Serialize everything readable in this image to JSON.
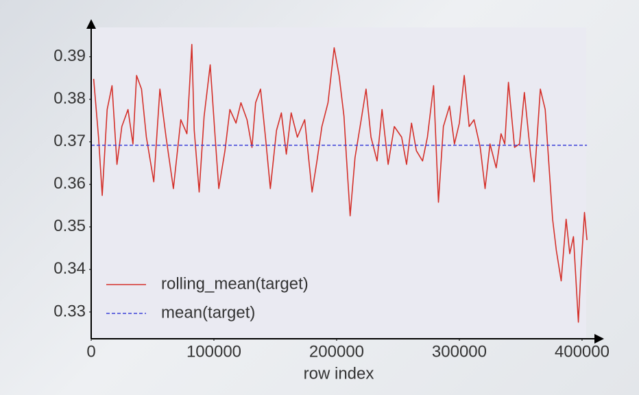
{
  "chart_data": {
    "type": "line",
    "x_label": "row index",
    "xlim": [
      0,
      414000
    ],
    "ylim": [
      0.3237,
      0.3977
    ],
    "xticks": [
      0,
      100000,
      200000,
      300000,
      400000
    ],
    "yticks": [
      0.33,
      0.34,
      0.35,
      0.36,
      0.37,
      0.38,
      0.39
    ],
    "grid": false,
    "legend": "lower left",
    "series": [
      {
        "name": "rolling_mean(target)",
        "color": "#d4302a",
        "style": "solid",
        "x": [
          2000,
          6000,
          9000,
          13000,
          17000,
          21000,
          25000,
          30000,
          34000,
          37000,
          41000,
          45000,
          51000,
          56000,
          61000,
          67000,
          73000,
          78000,
          82000,
          84000,
          88000,
          92000,
          97000,
          101000,
          104000,
          109000,
          113000,
          118000,
          122000,
          127000,
          131000,
          134000,
          138000,
          142000,
          146000,
          151000,
          155000,
          159000,
          163000,
          168000,
          174000,
          180000,
          184000,
          188000,
          193000,
          198000,
          202000,
          206000,
          208000,
          211000,
          215000,
          220000,
          224000,
          228000,
          233000,
          237000,
          242000,
          247000,
          253000,
          257000,
          261000,
          265000,
          270000,
          274000,
          279000,
          283000,
          287000,
          292000,
          296000,
          300000,
          304000,
          308000,
          312000,
          317000,
          321000,
          325000,
          330000,
          334000,
          337000,
          340000,
          345000,
          349000,
          353000,
          358000,
          361000,
          366000,
          370000,
          373000,
          376000,
          379000,
          383000,
          387000,
          390000,
          393000,
          397000,
          399000,
          402000,
          404000
        ],
        "values": [
          0.3848,
          0.3711,
          0.3574,
          0.3776,
          0.3832,
          0.3647,
          0.3736,
          0.3776,
          0.3695,
          0.3856,
          0.3824,
          0.3711,
          0.3606,
          0.3824,
          0.3711,
          0.359,
          0.3752,
          0.3719,
          0.3929,
          0.3727,
          0.3582,
          0.376,
          0.3881,
          0.3711,
          0.359,
          0.3679,
          0.3776,
          0.3744,
          0.3792,
          0.3752,
          0.3687,
          0.3792,
          0.3824,
          0.3711,
          0.359,
          0.3727,
          0.3768,
          0.3671,
          0.3768,
          0.3711,
          0.3752,
          0.3582,
          0.3655,
          0.3736,
          0.3792,
          0.3921,
          0.3856,
          0.376,
          0.3663,
          0.3526,
          0.3663,
          0.3752,
          0.3824,
          0.3711,
          0.3655,
          0.3776,
          0.3647,
          0.3736,
          0.3711,
          0.3647,
          0.3744,
          0.3679,
          0.3655,
          0.3711,
          0.3832,
          0.3558,
          0.3736,
          0.3784,
          0.3695,
          0.3744,
          0.3856,
          0.3736,
          0.3752,
          0.3687,
          0.359,
          0.3695,
          0.3639,
          0.3719,
          0.3695,
          0.384,
          0.3687,
          0.3695,
          0.3816,
          0.3671,
          0.3606,
          0.3824,
          0.3776,
          0.3647,
          0.3518,
          0.3445,
          0.3373,
          0.3518,
          0.3437,
          0.3477,
          0.3276,
          0.3397,
          0.3534,
          0.3469
        ]
      },
      {
        "name": "mean(target)",
        "color": "#3a3fd8",
        "style": "dashed",
        "x": [
          0,
          404000
        ],
        "values": [
          0.3692,
          0.3692
        ]
      }
    ]
  }
}
